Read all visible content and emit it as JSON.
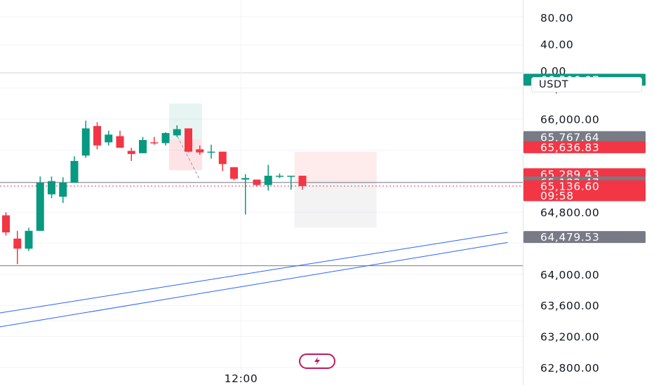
{
  "chart_data": {
    "type": "candlestick",
    "ylim": [
      62700,
      66560
    ],
    "y_ticks": [
      {
        "value": 62800,
        "label": "62,800.00"
      },
      {
        "value": 63200,
        "label": "63,200.00"
      },
      {
        "value": 63600,
        "label": "63,600.00"
      },
      {
        "value": 64000,
        "label": "64,000.00"
      },
      {
        "value": 64800,
        "label": "64,800.00"
      },
      {
        "value": 66000,
        "label": "66,000.00"
      },
      {
        "value": 66400,
        "label": "66,400.00"
      }
    ],
    "indicator_ticks": [
      "80.00",
      "40.00",
      "0.00"
    ],
    "quote_unit": "USDT",
    "x_ticks": [
      {
        "index": 20,
        "label": "12:00"
      }
    ],
    "candles": [
      {
        "o": 64760,
        "h": 64800,
        "l": 64500,
        "c": 64540
      },
      {
        "o": 64460,
        "h": 64560,
        "l": 64130,
        "c": 64330
      },
      {
        "o": 64330,
        "h": 64600,
        "l": 64300,
        "c": 64560
      },
      {
        "o": 64560,
        "h": 65260,
        "l": 64560,
        "c": 65180
      },
      {
        "o": 65030,
        "h": 65260,
        "l": 64980,
        "c": 65200
      },
      {
        "o": 65000,
        "h": 65250,
        "l": 64920,
        "c": 65180
      },
      {
        "o": 65180,
        "h": 65520,
        "l": 65180,
        "c": 65460
      },
      {
        "o": 65530,
        "h": 65980,
        "l": 65500,
        "c": 65880
      },
      {
        "o": 65910,
        "h": 65960,
        "l": 65610,
        "c": 65660
      },
      {
        "o": 65700,
        "h": 65850,
        "l": 65660,
        "c": 65800
      },
      {
        "o": 65780,
        "h": 65850,
        "l": 65630,
        "c": 65630
      },
      {
        "o": 65590,
        "h": 65630,
        "l": 65460,
        "c": 65550
      },
      {
        "o": 65560,
        "h": 65770,
        "l": 65560,
        "c": 65730
      },
      {
        "o": 65700,
        "h": 65770,
        "l": 65670,
        "c": 65690
      },
      {
        "o": 65690,
        "h": 65830,
        "l": 65660,
        "c": 65820
      },
      {
        "o": 65790,
        "h": 65920,
        "l": 65770,
        "c": 65870
      },
      {
        "o": 65880,
        "h": 65880,
        "l": 65570,
        "c": 65580
      },
      {
        "o": 65610,
        "h": 65660,
        "l": 65540,
        "c": 65570
      },
      {
        "o": 65580,
        "h": 65670,
        "l": 65490,
        "c": 65580
      },
      {
        "o": 65580,
        "h": 65580,
        "l": 65330,
        "c": 65420
      },
      {
        "o": 65380,
        "h": 65380,
        "l": 65210,
        "c": 65230
      },
      {
        "o": 65220,
        "h": 65290,
        "l": 64770,
        "c": 65240
      },
      {
        "o": 65220,
        "h": 65220,
        "l": 65130,
        "c": 65150
      },
      {
        "o": 65150,
        "h": 65410,
        "l": 65080,
        "c": 65270
      },
      {
        "o": 65270,
        "h": 65300,
        "l": 65240,
        "c": 65270
      },
      {
        "o": 65270,
        "h": 65270,
        "l": 65090,
        "c": 65270
      },
      {
        "o": 65270,
        "h": 65270,
        "l": 65090,
        "c": 65137
      }
    ],
    "price_tags": [
      {
        "value": 66506.97,
        "label": "66,506.97",
        "color": "#089981"
      },
      {
        "value": 65767.64,
        "label": "65,767.64",
        "color": "#787b86"
      },
      {
        "value": 65636.83,
        "label": "65,636.83",
        "color": "#f23645"
      },
      {
        "value": 65289.43,
        "label": "65,289.43",
        "color": "#f23645"
      },
      {
        "value": 65182.47,
        "label": "65,182.47",
        "color": "#787b86"
      },
      {
        "value": 65136.6,
        "label": "65,136.60",
        "countdown": "09:58",
        "color": "#f23645"
      },
      {
        "value": 64479.53,
        "label": "64,479.53",
        "color": "#787b86"
      }
    ],
    "horizontal_lines": [
      {
        "value": 65182.47,
        "color": "#787b86",
        "style": "solid"
      },
      {
        "value": 65136.6,
        "color": "#f23645",
        "style": "dotted"
      },
      {
        "value": 64110,
        "color": "#787b86",
        "style": "solid"
      }
    ],
    "trend_lines": [
      {
        "from": {
          "index": -1.5,
          "value": 63480
        },
        "to": {
          "index": 44,
          "value": 64540
        },
        "color": "#2962ff"
      },
      {
        "from": {
          "index": -1.5,
          "value": 63300
        },
        "to": {
          "index": 44,
          "value": 64410
        },
        "color": "#2962ff"
      }
    ],
    "position_boxes": [
      {
        "from": 14.3,
        "to": 17.2,
        "target": 66200,
        "entry": 65740,
        "stop": 65340,
        "kind": "long"
      },
      {
        "from": 25.3,
        "to": 32.5,
        "stop": 65580,
        "entry": 65180,
        "target": 64600,
        "kind": "short"
      }
    ],
    "colors": {
      "up": "#089981",
      "down": "#f23645",
      "grid": "#f0f3fa",
      "trend": "#2962ff",
      "replay": "#c2185b"
    }
  }
}
